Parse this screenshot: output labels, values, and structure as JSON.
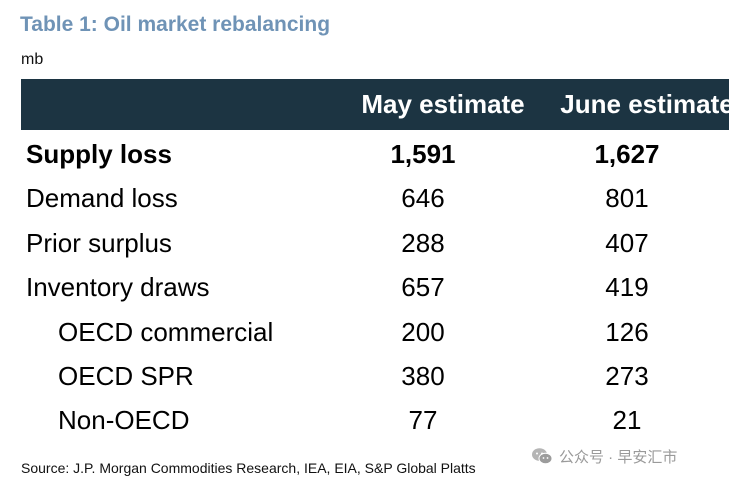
{
  "title": "Table 1: Oil market rebalancing",
  "unit": "mb",
  "table": {
    "columns": [
      "May estimate",
      "June estimate"
    ],
    "rows": [
      {
        "label": "Supply loss",
        "may": "1,591",
        "june": "1,627"
      },
      {
        "label": "Demand loss",
        "may": "646",
        "june": "801"
      },
      {
        "label": "Prior surplus",
        "may": "288",
        "june": "407"
      },
      {
        "label": "Inventory draws",
        "may": "657",
        "june": "419"
      },
      {
        "label": "OECD commercial",
        "may": "200",
        "june": "126"
      },
      {
        "label": "OECD SPR",
        "may": "380",
        "june": "273"
      },
      {
        "label": "Non-OECD",
        "may": "77",
        "june": "21"
      }
    ]
  },
  "source": "Source: J.P. Morgan Commodities Research, IEA, EIA, S&P Global Platts",
  "watermark": {
    "text": "公众号 · 早安汇市",
    "icon": "wechat-icon"
  },
  "colors": {
    "title": "#6f93b6",
    "header_bg": "#1c3442",
    "header_text": "#ffffff",
    "watermark": "#9a9a9a"
  }
}
